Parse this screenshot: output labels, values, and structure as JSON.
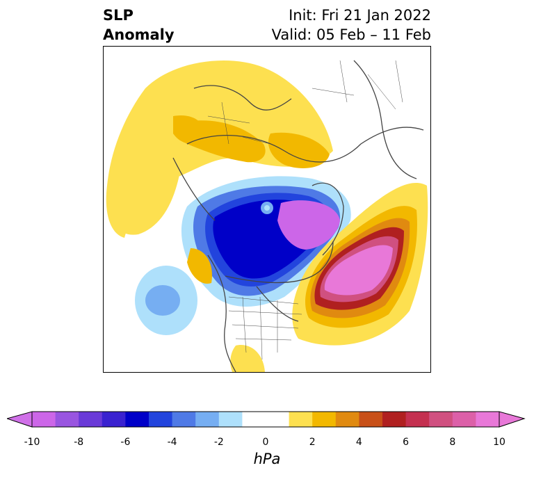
{
  "header": {
    "left_line1": "SLP",
    "left_line2": "Anomaly",
    "right_line1": "Init: Fri 21 Jan 2022",
    "right_line2": "Valid: 05 Feb – 11 Feb"
  },
  "colorbar": {
    "unit": "hPa",
    "ticks": [
      "-10",
      "-8",
      "-6",
      "-4",
      "-2",
      "0",
      "2",
      "4",
      "6",
      "8",
      "10"
    ],
    "colors": [
      "#cc66e8",
      "#9955e0",
      "#6a3ad8",
      "#3a22d0",
      "#0000c8",
      "#2244dd",
      "#4f7ae6",
      "#76aef2",
      "#aee0fb",
      "#ffffff",
      "#ffffff",
      "#fde050",
      "#f2b800",
      "#e08a10",
      "#c85018",
      "#b02020",
      "#c43050",
      "#d05080",
      "#dc60a8",
      "#e878d8"
    ],
    "extend_low_color": "#d070e8",
    "extend_high_color": "#e878d8"
  },
  "map": {
    "projection": "north-polar-stereographic",
    "field": "sea-level-pressure-anomaly"
  }
}
